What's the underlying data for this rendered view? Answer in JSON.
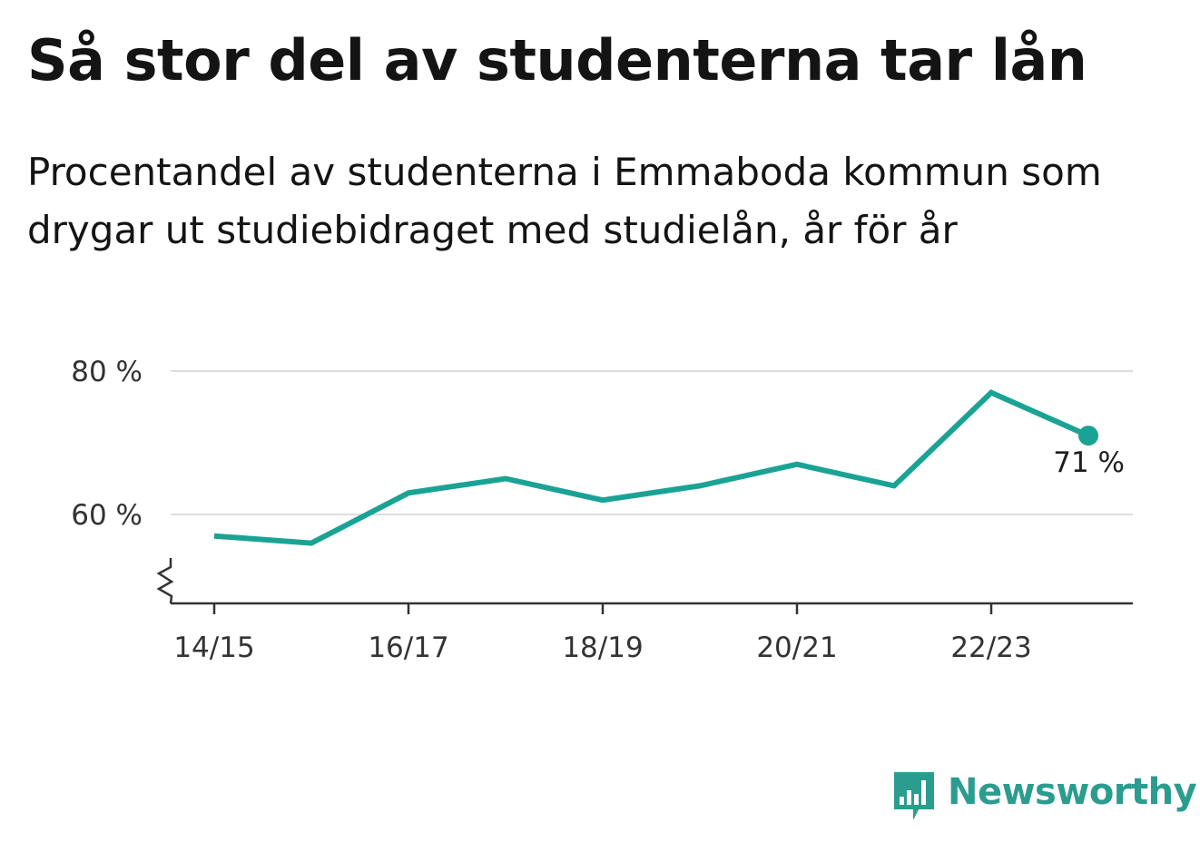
{
  "title": "Så stor del av studenterna tar lån",
  "subtitle": "Procentandel av studenterna i Emmaboda kommun som drygar ut studiebidraget med studielån, år för år",
  "brand": {
    "name": "Newsworthy",
    "icon": "newsworthy-logo-icon",
    "color": "#2a9d8f"
  },
  "chart_data": {
    "type": "line",
    "x": [
      "14/15",
      "15/16",
      "16/17",
      "17/18",
      "18/19",
      "19/20",
      "20/21",
      "21/22",
      "22/23",
      "23/24"
    ],
    "x_tick_labels": [
      "14/15",
      "16/17",
      "18/19",
      "20/21",
      "22/23"
    ],
    "series": [
      {
        "values": [
          57,
          56,
          63,
          65,
          62,
          64,
          67,
          64,
          77,
          71
        ],
        "color": "#1aa394"
      }
    ],
    "y_ticks": [
      60,
      80
    ],
    "y_tick_labels": [
      "60 %",
      "80 %"
    ],
    "ylim": [
      48,
      80
    ],
    "y_axis_break": true,
    "grid": true,
    "end_label": "71 %",
    "gridline_color": "#dddddd",
    "axis_color": "#333333"
  }
}
